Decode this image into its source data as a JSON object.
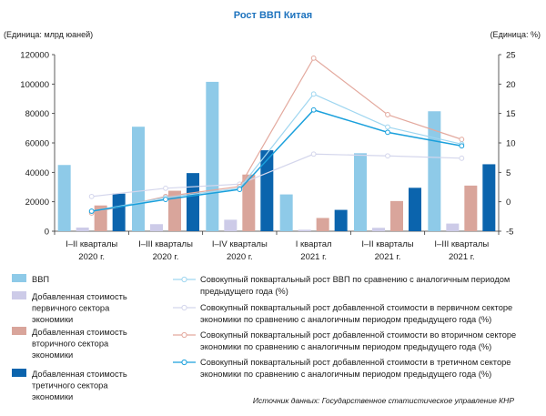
{
  "chart_data": {
    "type": "bar",
    "title": "Рост ВВП Китая",
    "left_unit": "(Единица: млрд юаней)",
    "right_unit": "(Единица: %)",
    "left_ticks": [
      "120000",
      "100000",
      "80000",
      "60000",
      "40000",
      "20000",
      "0"
    ],
    "right_ticks": [
      "25",
      "20",
      "15",
      "10",
      "5",
      "0",
      "-5"
    ],
    "ylim_left": [
      0,
      120000
    ],
    "ylim_right": [
      -5,
      25
    ],
    "categories": [
      {
        "line1": "I–II кварталы",
        "line2": "2020 г."
      },
      {
        "line1": "I–III кварталы",
        "line2": "2020 г."
      },
      {
        "line1": "I–IV кварталы",
        "line2": "2020 г."
      },
      {
        "line1": "I квартал",
        "line2": "2021 г."
      },
      {
        "line1": "I–II кварталы",
        "line2": "2021 г."
      },
      {
        "line1": "I–III кварталы",
        "line2": "2021 г."
      }
    ],
    "bar_series": [
      {
        "name": "ВВП",
        "color": "#8ecae8",
        "values": [
          45000,
          71000,
          101500,
          25000,
          53000,
          81500
        ]
      },
      {
        "name": "Добавленная стоимость первичного сектора экономики",
        "color": "#cdcbe8",
        "values": [
          2500,
          4800,
          7800,
          1000,
          2300,
          5200
        ]
      },
      {
        "name": "Добавленная стоимость вторичного сектора экономики",
        "color": "#d9a59b",
        "values": [
          17500,
          27500,
          38500,
          9000,
          20500,
          31000
        ]
      },
      {
        "name": "Добавленная стоимость третичного сектора экономики",
        "color": "#0b64ad",
        "values": [
          25500,
          39500,
          55000,
          14500,
          29500,
          45500
        ]
      }
    ],
    "line_series": [
      {
        "name": "Совокупный поквартальный рост ВВП по сравнению с аналогичным периодом предыдущего года (%)",
        "color": "#9fd6f0",
        "values": [
          -1.6,
          0.7,
          2.3,
          18.3,
          12.7,
          9.8
        ]
      },
      {
        "name": "Совокупный поквартальный рост добавленной стоимости в первичном секторе экономики по сравнению с аналогичным периодом предыдущего года (%)",
        "color": "#d4d6ec",
        "values": [
          0.9,
          2.3,
          3.0,
          8.1,
          7.8,
          7.4
        ]
      },
      {
        "name": "Совокупный поквартальный рост добавленной стоимости во вторичном секторе экономики по сравнению с аналогичным периодом предыдущего года (%)",
        "color": "#e3a99e",
        "values": [
          -1.9,
          0.9,
          2.6,
          24.4,
          14.8,
          10.6
        ]
      },
      {
        "name": "Совокупный поквартальный рост добавленной стоимости в третичном секторе экономики по сравнению с аналогичным периодом предыдущего года (%)",
        "color": "#1aa0dc",
        "values": [
          -1.6,
          0.4,
          2.1,
          15.6,
          11.8,
          9.5
        ]
      }
    ],
    "legend_bars": [
      {
        "lines": [
          "ВВП"
        ]
      },
      {
        "lines": [
          "Добавленная стоимость",
          "первичного сектора",
          "экономики"
        ]
      },
      {
        "lines": [
          "Добавленная стоимость",
          "вторичного сектора",
          "экономики"
        ]
      },
      {
        "lines": [
          "Добавленная стоимость",
          "третичного сектора",
          "экономики"
        ]
      }
    ],
    "legend_lines": [
      {
        "lines": [
          "Совокупный поквартальный рост ВВП по сравнению с аналогичным периодом",
          "предыдущего года (%)"
        ]
      },
      {
        "lines": [
          "Совокупный поквартальный рост добавленной стоимости в первичном секторе",
          "экономики по сравнению с аналогичным периодом предыдущего года (%)"
        ]
      },
      {
        "lines": [
          "Совокупный поквартальный рост добавленной стоимости во вторичном секторе",
          "экономики по сравнению с аналогичным периодом предыдущего года (%)"
        ]
      },
      {
        "lines": [
          "Совокупный поквартальный рост добавленной стоимости в третичном секторе",
          "экономики по сравнению с аналогичным периодом предыдущего года (%)"
        ]
      }
    ],
    "source": "Источник данных: Государственное статистическое управление КНР",
    "grid": false,
    "legend_position": "bottom"
  }
}
